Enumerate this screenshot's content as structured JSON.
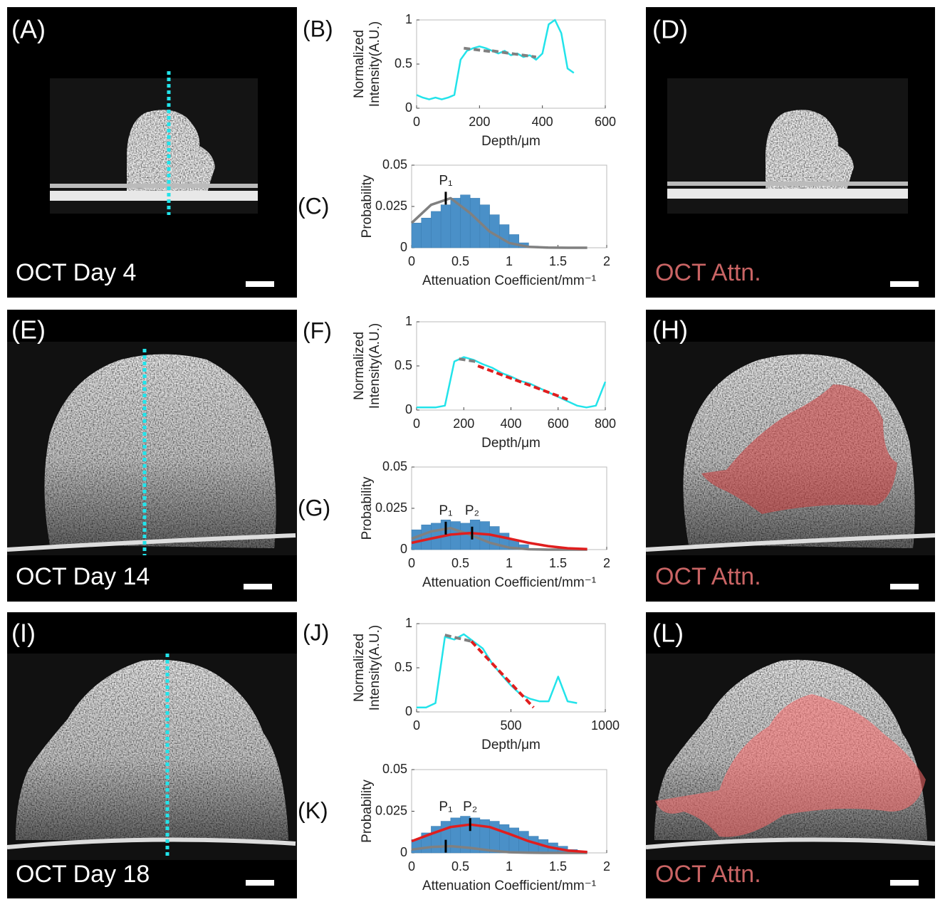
{
  "panels": [
    {
      "label": "(A)",
      "caption": "OCT Day 4"
    },
    {
      "label": "(D)",
      "caption": "OCT Attn."
    },
    {
      "label": "(E)",
      "caption": "OCT Day 14"
    },
    {
      "label": "(H)",
      "caption": "OCT Attn."
    },
    {
      "label": "(I)",
      "caption": "OCT Day 18"
    },
    {
      "label": "(L)",
      "caption": "OCT Attn."
    }
  ],
  "chart_data": [
    {
      "type": "line",
      "label": "(B)",
      "xlabel": "Depth/μm",
      "ylabel": [
        "Normalized",
        "Intensity(A.U.)"
      ],
      "xlim": [
        0,
        600
      ],
      "xticks": [
        0,
        200,
        400,
        600
      ],
      "ylim": [
        0,
        1
      ],
      "yticks": [
        0,
        0.5,
        1
      ],
      "series": [
        {
          "color": "#22e3ea",
          "style": "solid",
          "x": [
            0,
            20,
            40,
            60,
            80,
            100,
            120,
            140,
            160,
            180,
            200,
            220,
            240,
            260,
            280,
            300,
            320,
            340,
            360,
            380,
            400,
            420,
            440,
            460,
            480,
            500
          ],
          "values": [
            0.15,
            0.12,
            0.1,
            0.12,
            0.1,
            0.12,
            0.15,
            0.55,
            0.65,
            0.68,
            0.7,
            0.68,
            0.65,
            0.62,
            0.65,
            0.6,
            0.62,
            0.58,
            0.6,
            0.55,
            0.62,
            0.95,
            1.0,
            0.85,
            0.45,
            0.4
          ]
        },
        {
          "color": "#808080",
          "style": "dashed",
          "x": [
            150,
            240
          ],
          "values": [
            0.68,
            0.64
          ]
        },
        {
          "color": "#808080",
          "style": "dashed",
          "x": [
            240,
            380
          ],
          "values": [
            0.65,
            0.58
          ]
        }
      ]
    },
    {
      "type": "histogram",
      "label": "(C)",
      "xlabel": "Attenuation Coefficient/mm⁻¹",
      "ylabel": [
        "Probability"
      ],
      "xlim": [
        0,
        2
      ],
      "xticks": [
        0,
        0.5,
        1,
        1.5,
        2
      ],
      "ylim": [
        0,
        0.05
      ],
      "yticks": [
        0,
        0.025,
        0.05
      ],
      "color": "#4a90c8",
      "bins": [
        0,
        0.1,
        0.2,
        0.3,
        0.4,
        0.5,
        0.6,
        0.7,
        0.8,
        0.9,
        1.0,
        1.1,
        1.2,
        1.3,
        1.4
      ],
      "values": [
        0.015,
        0.018,
        0.022,
        0.026,
        0.03,
        0.032,
        0.03,
        0.026,
        0.02,
        0.014,
        0.008,
        0.003,
        0.001,
        0
      ],
      "curves": [
        {
          "color": "#808080",
          "x": [
            0,
            0.2,
            0.4,
            0.6,
            0.8,
            1.0,
            1.2,
            1.4,
            1.6,
            1.8
          ],
          "values": [
            0.015,
            0.026,
            0.03,
            0.021,
            0.0098,
            0.0029,
            0.0005,
            0.0001,
            0,
            0
          ]
        }
      ],
      "annotations": [
        {
          "text": "P₁",
          "x": 0.35,
          "y": 0.03
        }
      ]
    },
    {
      "type": "line",
      "label": "(F)",
      "xlabel": "Depth/μm",
      "ylabel": [
        "Normalized",
        "Intensity(A.U.)"
      ],
      "xlim": [
        0,
        800
      ],
      "xticks": [
        0,
        200,
        400,
        600,
        800
      ],
      "ylim": [
        0,
        1
      ],
      "yticks": [
        0,
        0.5,
        1
      ],
      "series": [
        {
          "color": "#22e3ea",
          "style": "solid",
          "x": [
            0,
            40,
            80,
            120,
            160,
            200,
            240,
            280,
            320,
            360,
            400,
            440,
            480,
            520,
            560,
            600,
            640,
            680,
            720,
            760,
            800
          ],
          "values": [
            0.03,
            0.03,
            0.03,
            0.05,
            0.55,
            0.6,
            0.57,
            0.52,
            0.48,
            0.42,
            0.38,
            0.33,
            0.3,
            0.25,
            0.2,
            0.15,
            0.1,
            0.05,
            0.03,
            0.05,
            0.32
          ]
        },
        {
          "color": "#808080",
          "style": "dashed",
          "x": [
            180,
            250
          ],
          "values": [
            0.58,
            0.55
          ]
        },
        {
          "color": "#e01e1e",
          "style": "dashed",
          "x": [
            260,
            640
          ],
          "values": [
            0.5,
            0.12
          ]
        }
      ]
    },
    {
      "type": "histogram",
      "label": "(G)",
      "xlabel": "Attenuation Coefficient/mm⁻¹",
      "ylabel": [
        "Probability"
      ],
      "xlim": [
        0,
        2
      ],
      "xticks": [
        0,
        0.5,
        1,
        1.5,
        2
      ],
      "ylim": [
        0,
        0.05
      ],
      "yticks": [
        0,
        0.025,
        0.05
      ],
      "color": "#4a90c8",
      "bins": [
        0,
        0.1,
        0.2,
        0.3,
        0.4,
        0.5,
        0.6,
        0.7,
        0.8,
        0.9,
        1.0,
        1.1,
        1.2
      ],
      "values": [
        0.012,
        0.015,
        0.016,
        0.018,
        0.017,
        0.016,
        0.018,
        0.017,
        0.014,
        0.01,
        0.006,
        0.003
      ],
      "curves": [
        {
          "color": "#808080",
          "x": [
            0,
            0.2,
            0.4,
            0.6,
            0.8,
            1.0,
            1.2,
            1.4,
            1.6,
            1.8
          ],
          "values": [
            0.0066,
            0.011,
            0.013,
            0.009,
            0.0042,
            0.0012,
            0.0002,
            0,
            0,
            0
          ]
        },
        {
          "color": "#e01e1e",
          "x": [
            0,
            0.2,
            0.4,
            0.6,
            0.8,
            1.0,
            1.2,
            1.4,
            1.6,
            1.8
          ],
          "values": [
            0.0041,
            0.0067,
            0.0091,
            0.01,
            0.0091,
            0.0067,
            0.0041,
            0.0021,
            0.0008,
            0.0003
          ]
        }
      ],
      "annotations": [
        {
          "text": "P₁",
          "x": 0.35,
          "y": 0.013
        },
        {
          "text": "P₂",
          "x": 0.62,
          "y": 0.01
        }
      ]
    },
    {
      "type": "line",
      "label": "(J)",
      "xlabel": "Depth/μm",
      "ylabel": [
        "Normalized",
        "Intensity(A.U.)"
      ],
      "xlim": [
        0,
        1000
      ],
      "xticks": [
        0,
        500,
        1000
      ],
      "ylim": [
        0,
        1
      ],
      "yticks": [
        0,
        0.5,
        1
      ],
      "series": [
        {
          "color": "#22e3ea",
          "style": "solid",
          "x": [
            0,
            50,
            100,
            150,
            200,
            250,
            300,
            350,
            400,
            450,
            500,
            550,
            600,
            650,
            700,
            750,
            800,
            850
          ],
          "values": [
            0.05,
            0.05,
            0.1,
            0.85,
            0.82,
            0.88,
            0.8,
            0.72,
            0.55,
            0.42,
            0.3,
            0.2,
            0.15,
            0.12,
            0.12,
            0.4,
            0.12,
            0.1
          ]
        },
        {
          "color": "#808080",
          "style": "dashed",
          "x": [
            150,
            290
          ],
          "values": [
            0.87,
            0.8
          ]
        },
        {
          "color": "#e01e1e",
          "style": "dashed",
          "x": [
            290,
            620
          ],
          "values": [
            0.8,
            0.05
          ]
        }
      ]
    },
    {
      "type": "histogram",
      "label": "(K)",
      "xlabel": "Attenuation Coefficient/mm⁻¹",
      "ylabel": [
        "Probability"
      ],
      "xlim": [
        0,
        2
      ],
      "xticks": [
        0,
        0.5,
        1,
        1.5,
        2
      ],
      "ylim": [
        0,
        0.05
      ],
      "yticks": [
        0,
        0.025,
        0.05
      ],
      "color": "#4a90c8",
      "bins": [
        0,
        0.1,
        0.2,
        0.3,
        0.4,
        0.5,
        0.6,
        0.7,
        0.8,
        0.9,
        1.0,
        1.1,
        1.2,
        1.3,
        1.4,
        1.5,
        1.6,
        1.7,
        1.8
      ],
      "values": [
        0.008,
        0.012,
        0.016,
        0.019,
        0.021,
        0.022,
        0.021,
        0.02,
        0.019,
        0.017,
        0.015,
        0.013,
        0.01,
        0.008,
        0.006,
        0.004,
        0.002,
        0.001
      ],
      "curves": [
        {
          "color": "#808080",
          "x": [
            0,
            0.2,
            0.4,
            0.6,
            0.8,
            1.0,
            1.2,
            1.4,
            1.6,
            1.8
          ],
          "values": [
            0.002,
            0.0035,
            0.004,
            0.003,
            0.0015,
            0.0004,
            0.0001,
            0,
            0,
            0
          ]
        },
        {
          "color": "#e01e1e",
          "x": [
            0,
            0.2,
            0.4,
            0.6,
            0.8,
            1.0,
            1.2,
            1.4,
            1.6,
            1.8
          ],
          "values": [
            0.007,
            0.0114,
            0.0155,
            0.017,
            0.0155,
            0.0114,
            0.007,
            0.0036,
            0.0014,
            0.0005
          ]
        }
      ],
      "annotations": [
        {
          "text": "P₁",
          "x": 0.35,
          "y": 0.004
        },
        {
          "text": "P₂",
          "x": 0.6,
          "y": 0.017
        }
      ]
    }
  ]
}
